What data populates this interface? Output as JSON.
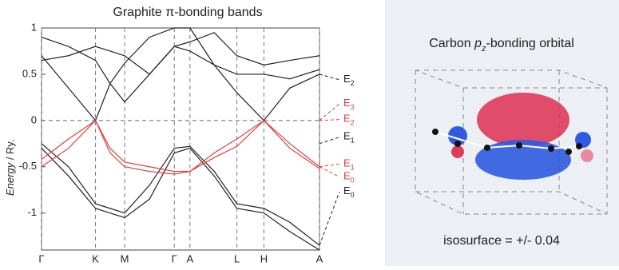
{
  "chart_data": {
    "type": "line",
    "title": "Graphite π-bonding bands",
    "y_label": {
      "italic": "Energy",
      "rest": " / Ry."
    },
    "x": [
      0,
      0.5,
      1,
      1.27,
      1.54,
      2.0,
      2.46,
      2.75,
      3.2,
      3.62,
      4.12,
      4.6,
      5.15
    ],
    "xlim": [
      0,
      5.15
    ],
    "xticks": [
      {
        "value": 0,
        "label": "Γ"
      },
      {
        "value": 1,
        "label": "K"
      },
      {
        "value": 1.54,
        "label": "M"
      },
      {
        "value": 2.46,
        "label": "Γ"
      },
      {
        "value": 2.75,
        "label": "A"
      },
      {
        "value": 3.62,
        "label": "L"
      },
      {
        "value": 4.12,
        "label": "H"
      },
      {
        "value": 5.15,
        "label": "A"
      }
    ],
    "ylim": [
      -1.4,
      1
    ],
    "yticks": [
      -1,
      -0.5,
      0,
      0.5,
      1
    ],
    "zero_line": true,
    "grid_x": true,
    "series": [
      {
        "color": "#222222",
        "values": [
          0.7,
          0.35,
          0,
          0.4,
          0.62,
          0.9,
          1.0,
          1.0,
          0.6,
          0.3,
          0,
          0.35,
          0.5
        ]
      },
      {
        "color": "#222222",
        "values": [
          0.65,
          0.7,
          0.8,
          0.75,
          0.7,
          0.5,
          0.8,
          0.85,
          0.95,
          0.7,
          0.6,
          0.65,
          0.7
        ]
      },
      {
        "color": "#222222",
        "values": [
          0.9,
          0.8,
          0.65,
          0.4,
          0.2,
          0.5,
          0.8,
          0.75,
          0.6,
          0.5,
          0.5,
          0.45,
          0.55
        ]
      },
      {
        "color": "#222222",
        "values": [
          -0.25,
          -0.5,
          -0.9,
          -0.95,
          -1.0,
          -0.7,
          -0.3,
          -0.28,
          -0.55,
          -0.9,
          -0.95,
          -1.1,
          -1.35
        ]
      },
      {
        "color": "#222222",
        "values": [
          -0.3,
          -0.6,
          -0.95,
          -1.0,
          -1.05,
          -0.85,
          -0.35,
          -0.3,
          -0.6,
          -0.95,
          -1.0,
          -1.2,
          -1.4
        ]
      },
      {
        "color": "#d9413f",
        "values": [
          -0.42,
          -0.2,
          0,
          -0.3,
          -0.45,
          -0.5,
          -0.55,
          -0.55,
          -0.35,
          -0.2,
          0,
          -0.25,
          -0.5
        ]
      },
      {
        "color": "#d9413f",
        "values": [
          -0.5,
          -0.3,
          0,
          -0.35,
          -0.5,
          -0.55,
          -0.58,
          -0.55,
          -0.4,
          -0.28,
          0,
          -0.3,
          -0.52
        ]
      }
    ],
    "annotations": [
      {
        "text": "E",
        "sub": "2",
        "color": "#222222",
        "y": 0.44,
        "from": 0.5
      },
      {
        "text": "E",
        "sub": "3",
        "color": "#d9413f",
        "y": 0.18,
        "from": 0
      },
      {
        "text": "E",
        "sub": "2",
        "color": "#d9413f",
        "y": 0.01,
        "from": 0
      },
      {
        "text": "E",
        "sub": "1",
        "color": "#222222",
        "y": -0.18,
        "from": -0.25
      },
      {
        "text": "E",
        "sub": "1",
        "color": "#d9413f",
        "y": -0.47,
        "from": -0.5
      },
      {
        "text": "E",
        "sub": "0",
        "color": "#d9413f",
        "y": -0.61,
        "from": -0.5
      },
      {
        "text": "E",
        "sub": "0",
        "color": "#222222",
        "y": -0.77,
        "from": -1.35
      }
    ]
  },
  "orbital_panel": {
    "title": {
      "before": "Carbon ",
      "p": "p",
      "sub": "z",
      "after": "-bonding orbital"
    },
    "caption": "isosurface = +/- 0.04"
  }
}
